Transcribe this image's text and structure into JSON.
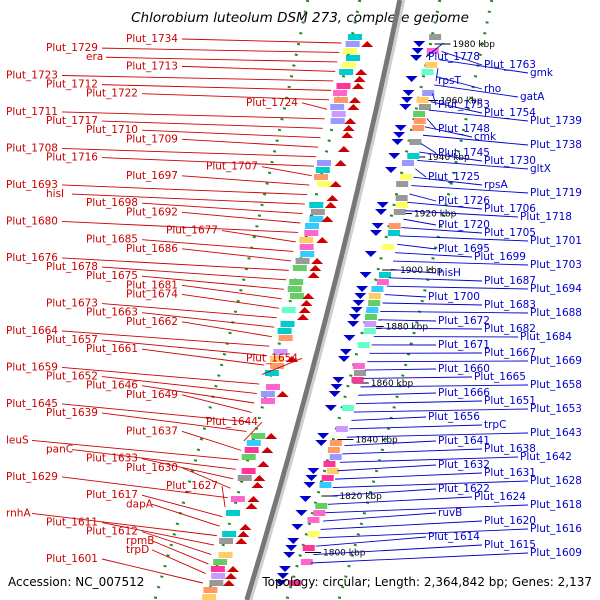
{
  "title": "Chlorobium luteolum DSM 273, complete genome",
  "accession": "Accession: NC_007512",
  "topology": "Topology: circular; Length: 2,364,842 bp; Genes: 2,137",
  "kbp_ticks": [
    "1980 kbp",
    "1960 kbp",
    "1940 kbp",
    "1920 kbp",
    "1900 kbp",
    "1880 kbp",
    "1860 kbp",
    "1840 kbp",
    "1820 kbp",
    "1800 kbp"
  ],
  "left_labels": [
    "Plut_1734",
    "Plut_1729",
    "era",
    "Plut_1713",
    "Plut_1723",
    "Plut_1712",
    "Plut_1722",
    "Plut_1724",
    "Plut_1711",
    "Plut_1717",
    "Plut_1710",
    "Plut_1709",
    "Plut_1708",
    "Plut_1716",
    "Plut_1707",
    "Plut_1697",
    "Plut_1693",
    "hisI",
    "Plut_1698",
    "Plut_1692",
    "Plut_1680",
    "Plut_1677",
    "Plut_1685",
    "Plut_1686",
    "Plut_1676",
    "Plut_1678",
    "Plut_1675",
    "Plut_1681",
    "Plut_1674",
    "Plut_1673",
    "Plut_1663",
    "Plut_1662",
    "Plut_1664",
    "Plut_1657",
    "Plut_1661",
    "Plut_1654",
    "Plut_1659",
    "Plut_1652",
    "Plut_1646",
    "Plut_1649",
    "Plut_1645",
    "Plut_1639",
    "Plut_1644",
    "Plut_1637",
    "leuS",
    "panC",
    "Plut_1633",
    "Plut_1630",
    "Plut_1629",
    "Plut_1627",
    "Plut_1617",
    "dapA",
    "rnhA",
    "Plut_1611",
    "Plut_1612",
    "rpmB",
    "trpD",
    "Plut_1601"
  ],
  "right_labels": [
    "Plut_1778",
    "Plut_1763",
    "gmk",
    "rpsT",
    "rho",
    "gatA",
    "Plut_1753",
    "Plut_1754",
    "Plut_1739",
    "Plut_1748",
    "cmk",
    "Plut_1738",
    "Plut_1745",
    "Plut_1730",
    "gltX",
    "Plut_1725",
    "rpsA",
    "Plut_1719",
    "Plut_1726",
    "Plut_1706",
    "Plut_1718",
    "Plut_1720",
    "Plut_1705",
    "Plut_1701",
    "Plut_1695",
    "Plut_1699",
    "Plut_1703",
    "hisH",
    "Plut_1687",
    "Plut_1694",
    "Plut_1700",
    "Plut_1683",
    "Plut_1688",
    "Plut_1672",
    "Plut_1682",
    "Plut_1684",
    "Plut_1671",
    "Plut_1667",
    "Plut_1669",
    "Plut_1660",
    "Plut_1665",
    "Plut_1658",
    "Plut_1666",
    "Plut_1651",
    "Plut_1653",
    "Plut_1656",
    "trpC",
    "Plut_1643",
    "Plut_1641",
    "Plut_1638",
    "Plut_1642",
    "Plut_1632",
    "Plut_1631",
    "Plut_1628",
    "Plut_1622",
    "Plut_1624",
    "Plut_1618",
    "ruvB",
    "Plut_1620",
    "Plut_1616",
    "Plut_1614",
    "Plut_1615",
    "Plut_1609"
  ],
  "colors": {
    "forward": "#cc0000",
    "reverse": "#0000cc",
    "backbone": "#888888",
    "tick": "#228b22"
  }
}
